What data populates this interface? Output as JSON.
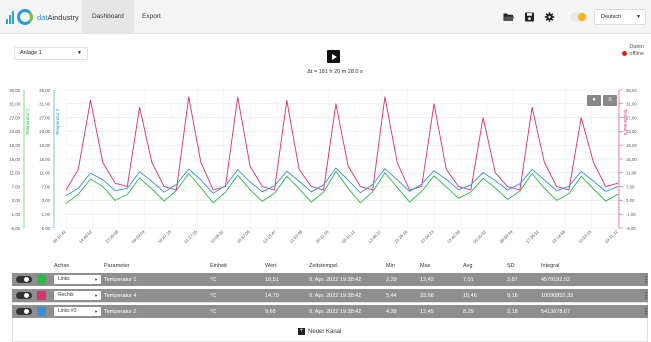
{
  "app": {
    "logo_text_brand": "dat",
    "logo_text_rest": "Aindustry"
  },
  "nav": {
    "tabs": [
      {
        "label": "Dashboard",
        "active": true
      },
      {
        "label": "Export",
        "active": false
      }
    ]
  },
  "toolbar": {
    "icons": [
      "folder-open-icon",
      "save-icon",
      "gear-icon",
      "theme-toggle"
    ],
    "language": "Deutsch"
  },
  "controls": {
    "plant_select": "Anlage 1",
    "delta_text": "Δt = 181 h 20 m 28.0 s",
    "status_label": "Daten",
    "status_value": "offline",
    "status_color": "#e0201b"
  },
  "chart_data": {
    "type": "line",
    "left_axis_1": {
      "label": "Temperatur 1",
      "ticks": [
        "35,00",
        "31,00",
        "27,00",
        "23,00",
        "19,00",
        "15,00",
        "11,00",
        "7,00",
        "3,00",
        "-1,00",
        "-5,00"
      ]
    },
    "left_axis_2": {
      "label": "Temperatur 2",
      "ticks": [
        "35,00",
        "31,00",
        "27,00",
        "23,00",
        "19,00",
        "15,00",
        "11,00",
        "7,00",
        "3,00",
        "-1,00",
        "-5,00"
      ]
    },
    "right_axis": {
      "label": "Temperatur 4",
      "ticks": [
        "35,00",
        "31,00",
        "27,00",
        "23,00",
        "19,00",
        "15,00",
        "11,00",
        "7,00",
        "3,00",
        "-1,00",
        "-5,00"
      ]
    },
    "ylim": [
      -5,
      35
    ],
    "x_ticks": [
      "06:10:42",
      "14:49:52",
      "23:29:58",
      "09:09:04",
      "16:47:19",
      "01:27:25",
      "10:06:32",
      "18:47:06",
      "03:15:47",
      "11:53:48",
      "20:31:05",
      "05:10:12",
      "13:48:27",
      "22:26:16",
      "07:04:23",
      "15:42:39",
      "00:20:52",
      "08:58:44",
      "17:36:52",
      "02:14:58",
      "10:53:05",
      "19:31:12"
    ],
    "grid": true,
    "series": [
      {
        "name": "Temperatur 1",
        "color": "#2fb84a",
        "axis": "left_axis_1",
        "values": [
          2.1,
          4.8,
          9.2,
          7.0,
          3.0,
          4.7,
          9.5,
          6.3,
          2.8,
          5.9,
          10.8,
          6.7,
          2.3,
          5.4,
          10.3,
          6.1,
          2.7,
          5.1,
          10.0,
          6.4,
          2.5,
          5.4,
          11.4,
          6.5,
          2.3,
          5.5,
          11.0,
          6.8,
          2.5,
          5.6,
          10.1,
          6.9,
          3.6,
          5.4,
          9.4,
          6.6,
          3.3,
          5.7,
          10.8,
          6.5,
          3.0,
          5.0,
          10.0,
          6.3,
          2.8,
          4.8
        ]
      },
      {
        "name": "Temperatur 4",
        "color": "#d4336f",
        "axis": "right_axis",
        "values": [
          6,
          12,
          32,
          14,
          8,
          7,
          30,
          14,
          7,
          6,
          33,
          14,
          6,
          7,
          33,
          13,
          7,
          6,
          32,
          12,
          7,
          6,
          31,
          13,
          7,
          6,
          33,
          14,
          6,
          7,
          31,
          12,
          7,
          6,
          27,
          11,
          7,
          6,
          30,
          14,
          7,
          6,
          27,
          14,
          7,
          8
        ]
      },
      {
        "name": "Temperatur 2",
        "color": "#3a8fd9",
        "axis": "left_axis_2",
        "values": [
          4.4,
          6.5,
          10.9,
          9.0,
          5.8,
          6.5,
          11.3,
          8.5,
          5.4,
          7.6,
          12.1,
          8.9,
          5.1,
          7.3,
          11.9,
          8.4,
          5.5,
          7.2,
          11.5,
          8.6,
          5.5,
          7.5,
          12.4,
          8.9,
          5.2,
          7.6,
          12.2,
          9.0,
          5.6,
          7.7,
          11.6,
          9.1,
          6.1,
          7.5,
          11.1,
          8.7,
          6.0,
          7.8,
          12.0,
          8.9,
          5.8,
          7.1,
          11.4,
          8.6,
          5.6,
          7.0
        ]
      }
    ]
  },
  "table": {
    "headers": [
      "Achse",
      "Parameter",
      "Einheit",
      "Wert",
      "Zeitstempel",
      "Min",
      "Max",
      "Avg",
      "SD",
      "Integral"
    ],
    "rows": [
      {
        "color": "#2fb84a",
        "axis": "Links",
        "parameter": "Temperatur 1",
        "unit": "°C",
        "value": "10,51",
        "timestamp": "9. Apr. 2022 19:38:42",
        "min": "2,29",
        "max": "12,42",
        "avg": "7,01",
        "sd": "2,87",
        "integral": "4579192,52"
      },
      {
        "color": "#d4336f",
        "axis": "Rechts",
        "parameter": "Temperatur 4",
        "unit": "°C",
        "value": "14,70",
        "timestamp": "9. Apr. 2022 19:38:42",
        "min": "5,44",
        "max": "33,68",
        "avg": "15,46",
        "sd": "9,16",
        "integral": "10090852,33"
      },
      {
        "color": "#3a8fd9",
        "axis": "Links #2",
        "parameter": "Temperatur 2",
        "unit": "°C",
        "value": "9,68",
        "timestamp": "9. Apr. 2022 19:38:42",
        "min": "4,39",
        "max": "12,45",
        "avg": "8,29",
        "sd": "2,18",
        "integral": "5413678,67"
      }
    ]
  },
  "footer": {
    "add_channel_label": "Neuer Kanal"
  }
}
